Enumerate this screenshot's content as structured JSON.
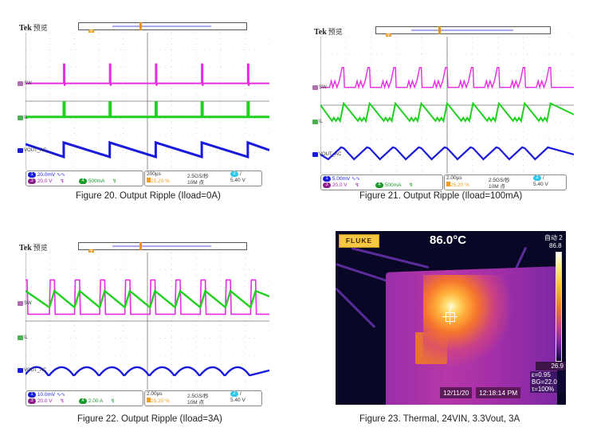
{
  "figures": [
    {
      "id": "fig20",
      "caption": "Figure 20. Output Ripple (Iload=0A)",
      "scope": {
        "brand": "Tek",
        "mode": "预览",
        "trigger_marker": "T",
        "channels": [
          {
            "num": "1",
            "name": "VOUT_AC",
            "scale": "20.0mV",
            "color": "#1a1adb",
            "coupling_icon": "∿∿"
          },
          {
            "num": "3",
            "name": "SW",
            "scale": "20.0 V",
            "color": "#e52ce0",
            "coupling_icon": "↯"
          },
          {
            "num": "4",
            "name": "IL",
            "scale": "500mA",
            "color": "#1fd11f",
            "coupling_icon": "↯"
          }
        ],
        "timebase": "200µs",
        "trigger_pos": "25.20 %",
        "sample_rate": "2.5GS/秒",
        "record_length": "10M 点",
        "trigger_channel": "2",
        "trigger_slope": "/",
        "trigger_level": "5.40 V",
        "waveform_pattern": "light-load"
      }
    },
    {
      "id": "fig21",
      "caption": "Figure 21. Output Ripple (Iload=100mA)",
      "scope": {
        "brand": "Tek",
        "mode": "预览",
        "trigger_marker": "T",
        "channels": [
          {
            "num": "1",
            "name": "VOUT_AC",
            "scale": "5.00mV",
            "color": "#1a1adb",
            "coupling_icon": "∿∿"
          },
          {
            "num": "3",
            "name": "SW",
            "scale": "20.0 V",
            "color": "#e52ce0",
            "coupling_icon": "↯"
          },
          {
            "num": "4",
            "name": "IL",
            "scale": "500mA",
            "color": "#1fd11f",
            "coupling_icon": "↯"
          }
        ],
        "timebase": "2.00µs",
        "trigger_pos": "25.20 %",
        "sample_rate": "2.5GS/秒",
        "record_length": "10M 点",
        "trigger_channel": "2",
        "trigger_slope": "/",
        "trigger_level": "5.40 V",
        "waveform_pattern": "dcm"
      }
    },
    {
      "id": "fig22",
      "caption": "Figure 22. Output Ripple (Iload=3A)",
      "scope": {
        "brand": "Tek",
        "mode": "预览",
        "trigger_marker": "T",
        "channels": [
          {
            "num": "1",
            "name": "VOUT_AC",
            "scale": "10.0mV",
            "color": "#1a1adb",
            "coupling_icon": "∿∿"
          },
          {
            "num": "3",
            "name": "SW",
            "scale": "20.0 V",
            "color": "#e52ce0",
            "coupling_icon": "↯"
          },
          {
            "num": "4",
            "name": "IL",
            "scale": "2.00 A",
            "color": "#1fd11f",
            "coupling_icon": "↯"
          }
        ],
        "timebase": "2.00µs",
        "trigger_pos": "25.20 %",
        "sample_rate": "2.5GS/秒",
        "record_length": "10M 点",
        "trigger_channel": "2",
        "trigger_slope": "/",
        "trigger_level": "5.40 V",
        "waveform_pattern": "ccm"
      }
    }
  ],
  "thermal": {
    "caption": "Figure 23. Thermal, 24VIN, 3.3Vout, 3A",
    "brand": "FLUKE",
    "center_temp": "86.0°C",
    "mode": "自动 2",
    "scale_max": "86.8",
    "scale_min": "26.9",
    "emissivity": "ε=0.95",
    "background": "BG=22.0",
    "transmission": "τ=100%",
    "date": "12/11/20",
    "time": "12:18:14 PM"
  }
}
